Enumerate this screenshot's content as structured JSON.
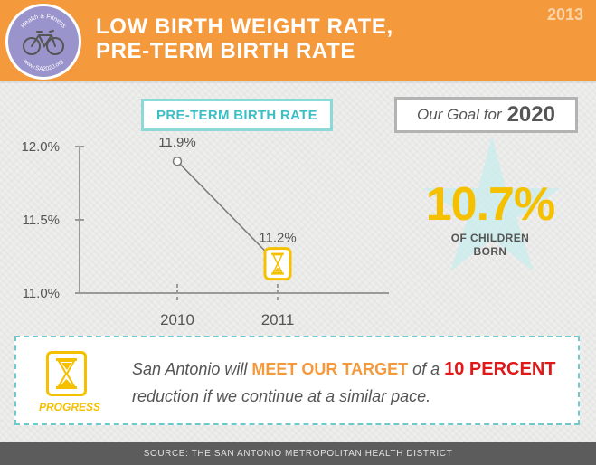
{
  "header": {
    "title_line1": "LOW BIRTH WEIGHT RATE,",
    "title_line2": "PRE-TERM BIRTH RATE",
    "year": "2013",
    "logo": {
      "top_text": "Health & Fitness",
      "bottom_text": "www.SA2020.org",
      "icon": "bicycle-icon"
    }
  },
  "chart_title": "PRE-TERM BIRTH RATE",
  "chart_data": {
    "type": "line",
    "title": "PRE-TERM BIRTH RATE",
    "categories": [
      "2010",
      "2011"
    ],
    "series": [
      {
        "values": [
          11.9,
          11.2
        ],
        "labels": [
          "11.9%",
          "11.2%"
        ]
      }
    ],
    "y_ticks": [
      "12.0%",
      "11.5%",
      "11.0%"
    ],
    "y_tick_values": [
      12.0,
      11.5,
      11.0
    ],
    "ylim": [
      11.0,
      12.0
    ],
    "grid": false,
    "last_point_marker": "hourglass-icon"
  },
  "goal": {
    "label": "Our Goal for",
    "year": "2020",
    "value": "10.7%",
    "sub_line1": "OF CHILDREN",
    "sub_line2": "BORN",
    "star_color": "#c8ecec"
  },
  "progress": {
    "label": "PROGRESS",
    "icon": "hourglass-icon",
    "text_part1": "San Antonio will ",
    "text_highlight1": "MEET OUR TARGET",
    "text_part2": " of a ",
    "text_highlight2": "10 PERCENT",
    "text_part3": " reduction if we continue at a similar pace."
  },
  "footer": {
    "source": "SOURCE: THE SAN ANTONIO METROPOLITAN HEALTH DISTRICT"
  },
  "colors": {
    "header": "#f49a3d",
    "accent_yellow": "#f5c000",
    "accent_teal": "#3cbfc4",
    "highlight_red": "#e01818",
    "footer": "#5c5c5c"
  }
}
